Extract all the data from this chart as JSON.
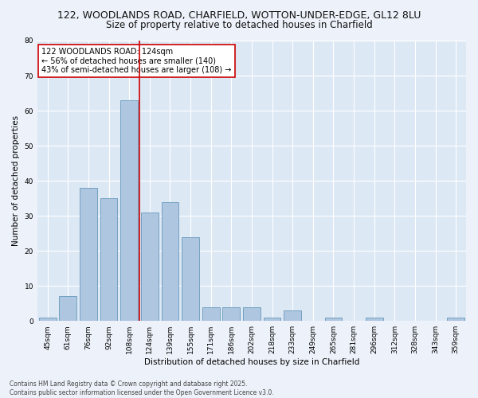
{
  "title1": "122, WOODLANDS ROAD, CHARFIELD, WOTTON-UNDER-EDGE, GL12 8LU",
  "title2": "Size of property relative to detached houses in Charfield",
  "xlabel": "Distribution of detached houses by size in Charfield",
  "ylabel": "Number of detached properties",
  "footer1": "Contains HM Land Registry data © Crown copyright and database right 2025.",
  "footer2": "Contains public sector information licensed under the Open Government Licence v3.0.",
  "annotation_line1": "122 WOODLANDS ROAD: 124sqm",
  "annotation_line2": "← 56% of detached houses are smaller (140)",
  "annotation_line3": "43% of semi-detached houses are larger (108) →",
  "bar_labels": [
    "45sqm",
    "61sqm",
    "76sqm",
    "92sqm",
    "108sqm",
    "124sqm",
    "139sqm",
    "155sqm",
    "171sqm",
    "186sqm",
    "202sqm",
    "218sqm",
    "233sqm",
    "249sqm",
    "265sqm",
    "281sqm",
    "296sqm",
    "312sqm",
    "328sqm",
    "343sqm",
    "359sqm"
  ],
  "bar_values": [
    1,
    7,
    38,
    35,
    63,
    31,
    34,
    24,
    4,
    4,
    4,
    1,
    3,
    0,
    1,
    0,
    1,
    0,
    0,
    0,
    1
  ],
  "bar_color": "#aec6e0",
  "bar_edge_color": "#6699bb",
  "marker_color": "#cc0000",
  "marker_index": 5,
  "ylim": [
    0,
    80
  ],
  "yticks": [
    0,
    10,
    20,
    30,
    40,
    50,
    60,
    70,
    80
  ],
  "bg_color": "#dde8f5",
  "grid_color": "#ffffff",
  "fig_bg_color": "#edf2fa",
  "annotation_box_color": "#cc0000",
  "title1_fontsize": 9,
  "title2_fontsize": 8.5,
  "axis_label_fontsize": 7.5,
  "tick_fontsize": 6.5,
  "annotation_fontsize": 7,
  "footer_fontsize": 5.5
}
